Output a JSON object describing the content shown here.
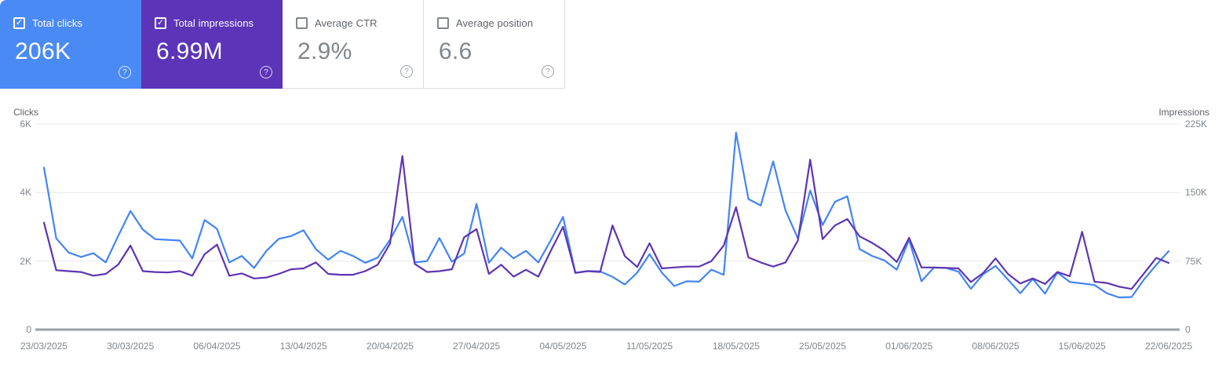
{
  "cards": [
    {
      "id": "total-clicks",
      "label": "Total clicks",
      "value": "206K",
      "checked": true,
      "background": "#4a8af4"
    },
    {
      "id": "total-impressions",
      "label": "Total impressions",
      "value": "6.99M",
      "checked": true,
      "background": "#5c34b8"
    },
    {
      "id": "average-ctr",
      "label": "Average CTR",
      "value": "2.9%",
      "checked": false,
      "background": "#ffffff"
    },
    {
      "id": "average-position",
      "label": "Average position",
      "value": "6.6",
      "checked": false,
      "background": "#ffffff"
    }
  ],
  "chart_data": {
    "type": "line",
    "title": "",
    "grid": true,
    "left_axis": {
      "label": "Clicks",
      "ticks": [
        "6K",
        "4K",
        "2K",
        "0"
      ],
      "min": 0,
      "max": 6000
    },
    "right_axis": {
      "label": "Impressions",
      "ticks": [
        "225K",
        "150K",
        "75K",
        "0"
      ],
      "min": 0,
      "max": 225000
    },
    "x_tick_labels": [
      "23/03/2025",
      "30/03/2025",
      "06/04/2025",
      "13/04/2025",
      "20/04/2025",
      "27/04/2025",
      "04/05/2025",
      "11/05/2025",
      "18/05/2025",
      "25/05/2025",
      "01/06/2025",
      "08/06/2025",
      "15/06/2025",
      "22/06/2025"
    ],
    "x_tick_days": [
      0,
      7,
      14,
      21,
      28,
      35,
      42,
      49,
      56,
      63,
      70,
      77,
      84,
      91
    ],
    "days_total": 92,
    "date_range": {
      "start": "23/03/2025",
      "end": "22/06/2025"
    },
    "series": [
      {
        "name": "Clicks",
        "axis": "left",
        "color": "#4285f4",
        "values": [
          4730,
          2660,
          2250,
          2120,
          2230,
          1960,
          2730,
          3460,
          2920,
          2640,
          2620,
          2600,
          2080,
          3200,
          2940,
          1960,
          2150,
          1800,
          2300,
          2650,
          2730,
          2900,
          2350,
          2040,
          2300,
          2150,
          1950,
          2100,
          2620,
          3290,
          1960,
          2000,
          2670,
          1980,
          2220,
          3670,
          1950,
          2390,
          2080,
          2300,
          1960,
          2600,
          3290,
          1660,
          1710,
          1700,
          1540,
          1320,
          1660,
          2200,
          1660,
          1270,
          1410,
          1400,
          1750,
          1600,
          5750,
          3810,
          3620,
          4910,
          3480,
          2660,
          4060,
          3050,
          3730,
          3890,
          2350,
          2150,
          2020,
          1750,
          2620,
          1410,
          1810,
          1800,
          1690,
          1190,
          1620,
          1860,
          1460,
          1060,
          1480,
          1050,
          1670,
          1390,
          1350,
          1300,
          1060,
          940,
          950,
          1460,
          1890,
          2290
        ]
      },
      {
        "name": "Impressions",
        "axis": "right",
        "color": "#5e35b1",
        "values": [
          117000,
          65000,
          64000,
          63000,
          59000,
          61000,
          71000,
          92000,
          64000,
          63000,
          62500,
          64000,
          59000,
          82500,
          93000,
          59000,
          61500,
          56000,
          57000,
          61000,
          66000,
          67000,
          73500,
          61000,
          60000,
          60000,
          64000,
          71000,
          94000,
          190000,
          72000,
          63000,
          64000,
          66000,
          101000,
          110000,
          61000,
          71000,
          58000,
          65500,
          58000,
          86000,
          112500,
          62000,
          64000,
          63000,
          114000,
          80500,
          68500,
          94500,
          67000,
          68000,
          69000,
          69000,
          75000,
          92000,
          134000,
          79000,
          73500,
          69000,
          73500,
          97500,
          186000,
          99000,
          114000,
          121000,
          102000,
          95000,
          86500,
          74000,
          100500,
          68000,
          68000,
          67500,
          67000,
          52000,
          62000,
          78000,
          61000,
          50500,
          56000,
          50000,
          63000,
          58500,
          107000,
          52500,
          51000,
          47000,
          44500,
          61500,
          78500,
          73000
        ]
      }
    ]
  }
}
